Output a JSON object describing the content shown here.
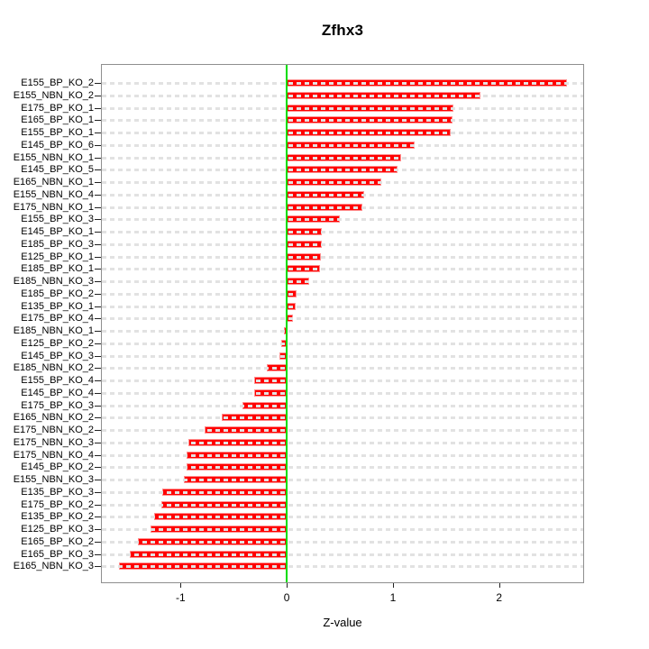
{
  "title": "Zfhx3",
  "chart_data": {
    "type": "bar",
    "orientation": "horizontal",
    "title": "Zfhx3",
    "xlabel": "Z-value",
    "categories": [
      "E155_BP_KO_2",
      "E155_NBN_KO_2",
      "E175_BP_KO_1",
      "E165_BP_KO_1",
      "E155_BP_KO_1",
      "E145_BP_KO_6",
      "E155_NBN_KO_1",
      "E145_BP_KO_5",
      "E165_NBN_KO_1",
      "E155_NBN_KO_4",
      "E175_NBN_KO_1",
      "E155_BP_KO_3",
      "E145_BP_KO_1",
      "E185_BP_KO_3",
      "E125_BP_KO_1",
      "E185_BP_KO_1",
      "E185_NBN_KO_3",
      "E185_BP_KO_2",
      "E135_BP_KO_1",
      "E175_BP_KO_4",
      "E185_NBN_KO_1",
      "E125_BP_KO_2",
      "E145_BP_KO_3",
      "E185_NBN_KO_2",
      "E155_BP_KO_4",
      "E145_BP_KO_4",
      "E175_BP_KO_3",
      "E165_NBN_KO_2",
      "E175_NBN_KO_2",
      "E175_NBN_KO_3",
      "E175_NBN_KO_4",
      "E145_BP_KO_2",
      "E155_NBN_KO_3",
      "E135_BP_KO_3",
      "E175_BP_KO_2",
      "E135_BP_KO_2",
      "E125_BP_KO_3",
      "E165_BP_KO_2",
      "E165_BP_KO_3",
      "E165_NBN_KO_3"
    ],
    "values": [
      2.64,
      1.82,
      1.57,
      1.56,
      1.54,
      1.2,
      1.08,
      1.04,
      0.89,
      0.73,
      0.71,
      0.5,
      0.33,
      0.33,
      0.32,
      0.31,
      0.21,
      0.09,
      0.08,
      0.06,
      -0.03,
      -0.05,
      -0.07,
      -0.19,
      -0.31,
      -0.31,
      -0.42,
      -0.61,
      -0.77,
      -0.93,
      -0.94,
      -0.94,
      -0.97,
      -1.17,
      -1.18,
      -1.25,
      -1.28,
      -1.4,
      -1.48,
      -1.58
    ],
    "x_ticks": [
      -1,
      0,
      1,
      2
    ],
    "xlim": [
      -1.75,
      2.8
    ],
    "grid": true,
    "zero_line": 0,
    "colors": {
      "bar": "#ff0000",
      "bar_border": "#ff9090",
      "zero_line": "#00dd00",
      "grid": "#e2e2e2",
      "box": "#8f8f8f"
    }
  }
}
